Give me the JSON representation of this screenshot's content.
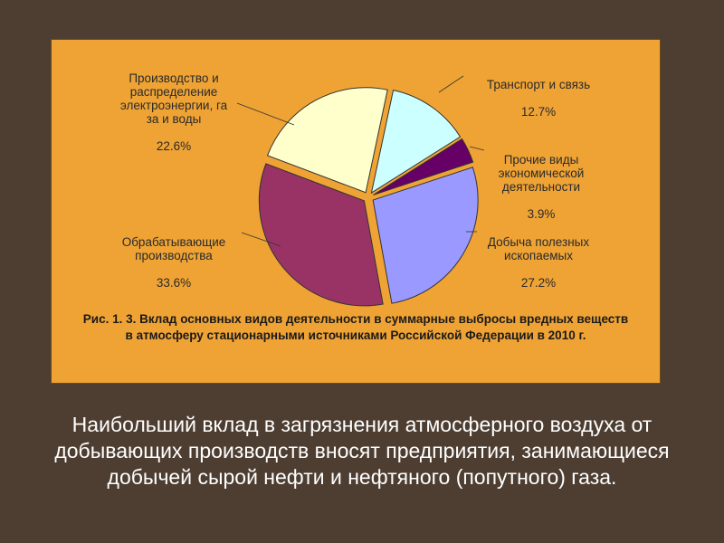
{
  "chart_data": {
    "type": "pie",
    "categories": [
      "Транспорт и связь",
      "Прочие виды\nэкономической\nдеятельности",
      "Добыча полезных\nископаемых",
      "Обрабатывающие\nпроизводства",
      "Производство и\nраспределение\nэлектроэнергии, га\nза и воды"
    ],
    "values": [
      12.7,
      3.9,
      27.2,
      33.6,
      22.6
    ],
    "value_labels": [
      "12.7%",
      "3.9%",
      "27.2%",
      "33.6%",
      "22.6%"
    ],
    "colors": [
      "#ccffff",
      "#660066",
      "#9999ff",
      "#993366",
      "#ffffcc"
    ],
    "exploded": true,
    "title": "Рис. 1. 3. Вклад основных видов деятельности в суммарные выбросы вредных веществ в атмосферу стационарными источниками Российской Федерации в 2010 г."
  },
  "body_text": "Наибольший вклад в загрязнения атмосферного воздуха от добывающих производств вносят предприятия, занимающиеся добычей сырой нефти и нефтяного (попутного) газа."
}
